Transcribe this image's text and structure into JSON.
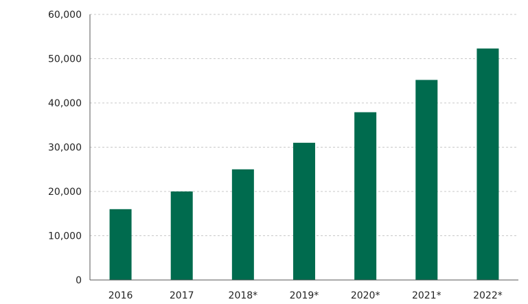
{
  "chart_data": {
    "type": "bar",
    "title": "",
    "xlabel": "",
    "ylabel": "",
    "categories": [
      "2016",
      "2017",
      "2018*",
      "2019*",
      "2020*",
      "2021*",
      "2022*"
    ],
    "values": [
      16000,
      20000,
      25000,
      31000,
      37900,
      45200,
      52300
    ],
    "ylim": [
      0,
      60000
    ],
    "y_ticks": [
      0,
      10000,
      20000,
      30000,
      40000,
      50000,
      60000
    ],
    "y_tick_labels": [
      "0",
      "10,000",
      "20,000",
      "30,000",
      "40,000",
      "50,000",
      "60,000"
    ],
    "grid": true,
    "legend": "none",
    "colors": {
      "bar": "#006b4e"
    }
  }
}
